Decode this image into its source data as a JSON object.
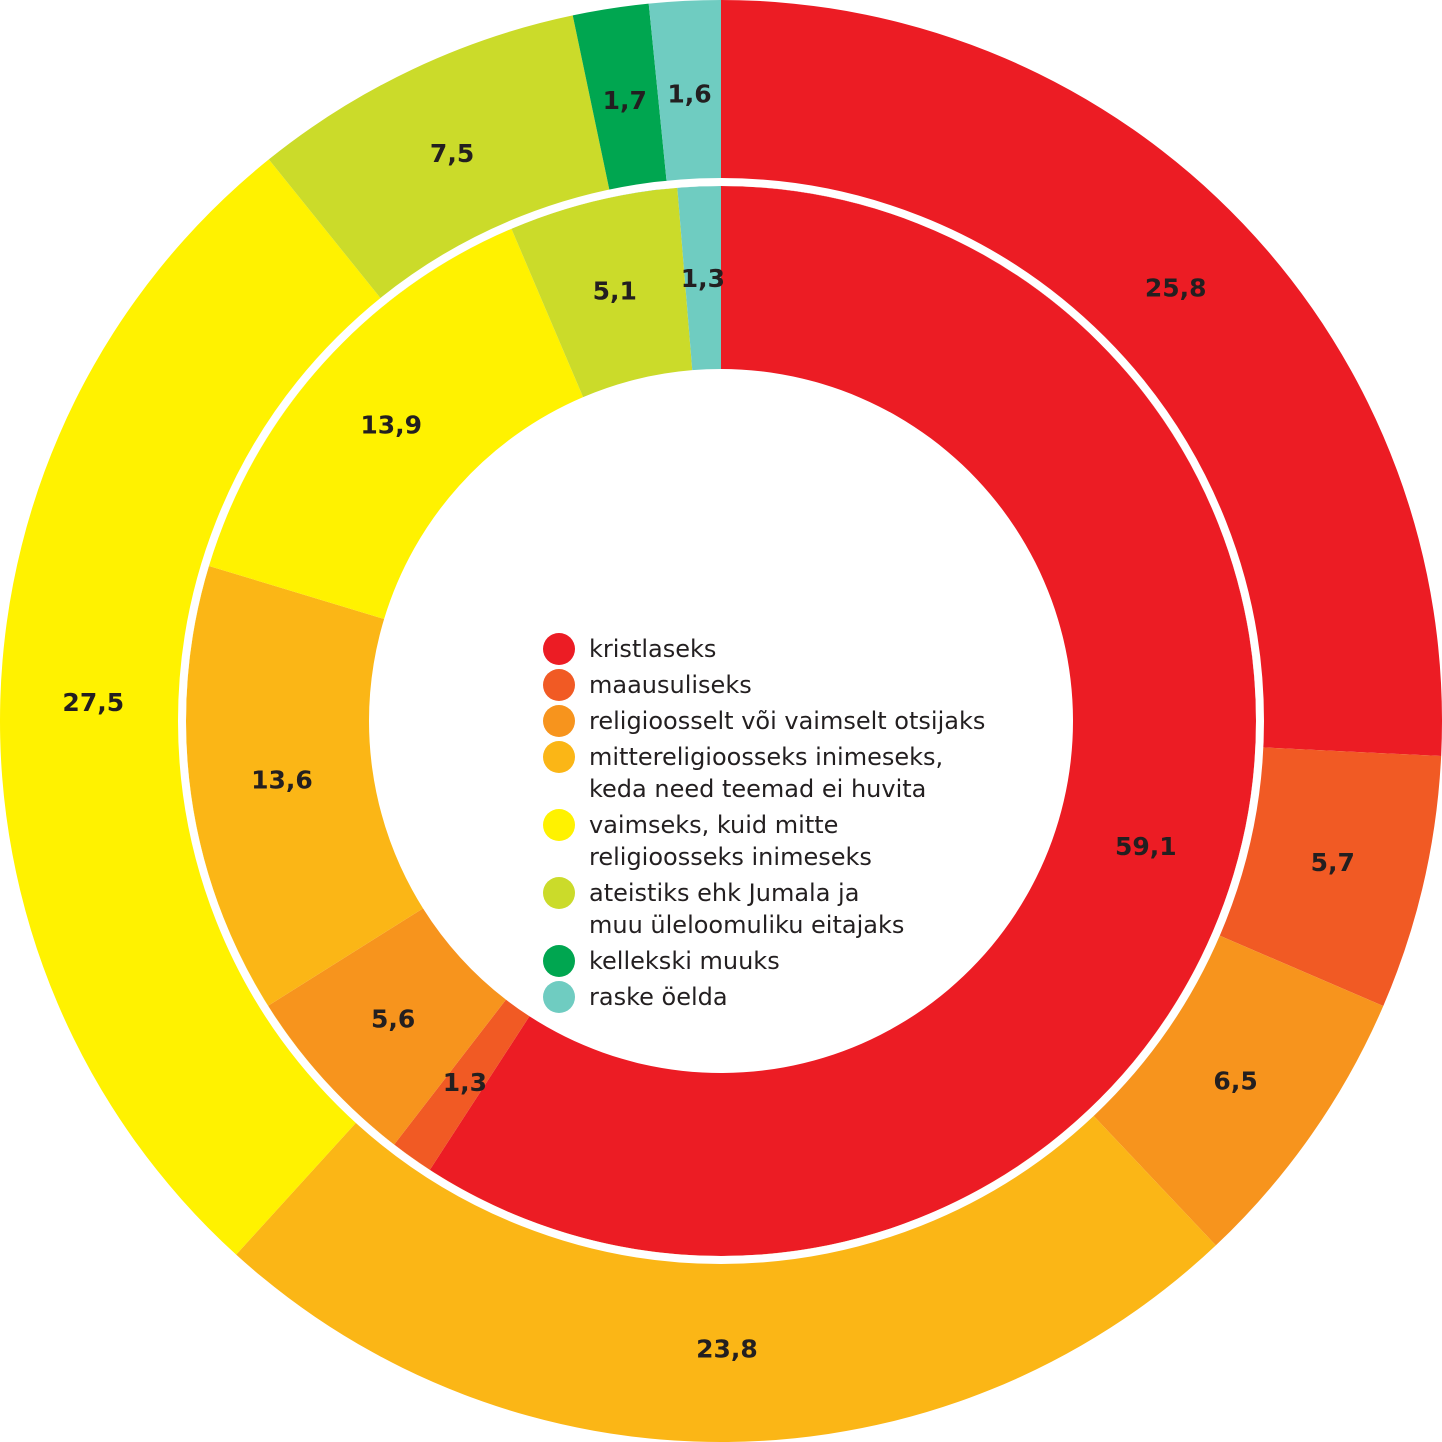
{
  "chart_data": {
    "type": "pie",
    "variant": "nested-donut",
    "categories": [
      "kristlaseks",
      "maausuliseks",
      "religioosselt või vaimselt otsijaks",
      "mittereligioosseks inimeseks,\nkeda need teemad ei huvita",
      "vaimseks, kuid mitte\nreligioosseks inimeseks",
      "ateistiks ehk Jumala ja\nmuu üleloomuliku eitajaks",
      "kellekski muuks",
      "raske öelda"
    ],
    "colors": [
      "#ec1c24",
      "#f15a24",
      "#f7941d",
      "#fbb616",
      "#fff200",
      "#cbdb2a",
      "#00a650",
      "#6fccc1"
    ],
    "series": [
      {
        "ring": "outer",
        "values": [
          25.8,
          5.7,
          6.5,
          23.8,
          27.5,
          7.5,
          1.7,
          1.6
        ],
        "labels": [
          "25,8",
          "5,7",
          "6,5",
          "23,8",
          "27,5",
          "7,5",
          "1,7",
          "1,6"
        ]
      },
      {
        "ring": "inner",
        "values": [
          59.1,
          1.3,
          5.6,
          13.6,
          13.9,
          5.1,
          0,
          1.3
        ],
        "labels": [
          "59,1",
          "1,3",
          "5,6",
          "13,6",
          "13,9",
          "5,1",
          "",
          "1,3"
        ]
      }
    ],
    "legend_position": "center"
  }
}
